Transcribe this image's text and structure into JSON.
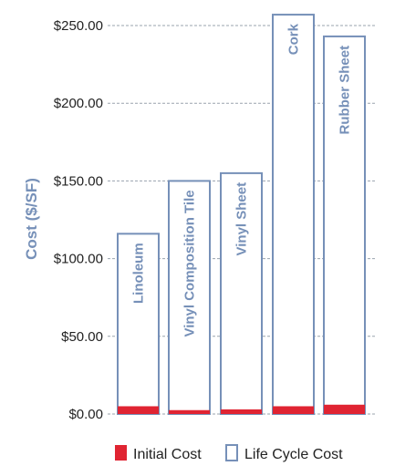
{
  "chart_data": {
    "type": "bar",
    "title": "",
    "xlabel": "",
    "ylabel": "Cost ($/SF)",
    "ylim": [
      0,
      250
    ],
    "grid": "horizontal dashed",
    "legend_position": "bottom",
    "y_ticks": [
      {
        "value": 0,
        "label": "$0.00"
      },
      {
        "value": 50,
        "label": "$50.00"
      },
      {
        "value": 100,
        "label": "$100.00"
      },
      {
        "value": 150,
        "label": "$150.00"
      },
      {
        "value": 200,
        "label": "$200.00"
      },
      {
        "value": 250,
        "label": "$250.00"
      }
    ],
    "categories": [
      "Linoleum",
      "Vinyl Composition Tile",
      "Vinyl Sheet",
      "Cork",
      "Rubber Sheet"
    ],
    "series": [
      {
        "name": "Initial Cost",
        "values": [
          5,
          2.5,
          3,
          5,
          6
        ]
      },
      {
        "name": "Life Cycle Cost",
        "values": [
          116,
          150,
          155,
          257,
          243
        ]
      }
    ]
  },
  "colors": {
    "initial_cost": "#e02432",
    "life_cycle_cost": "#7690b8",
    "axis_label": "#7690b8",
    "grid": "#9aa3ae"
  }
}
